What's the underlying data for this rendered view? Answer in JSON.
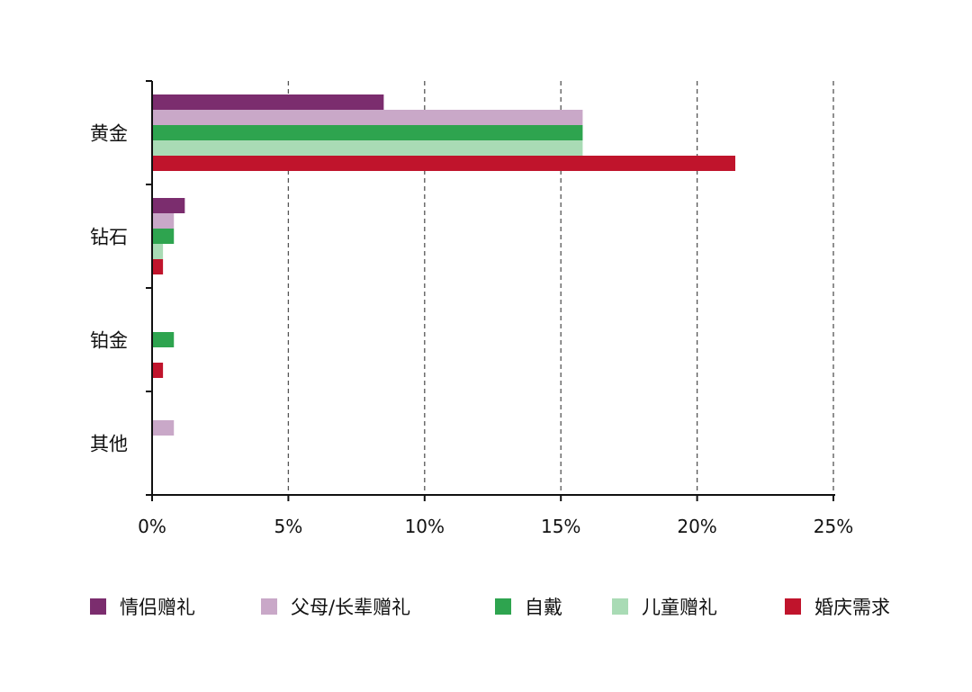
{
  "chart_data": {
    "type": "bar",
    "orientation": "horizontal",
    "categories": [
      "黄金",
      "钻石",
      "铂金",
      "其他"
    ],
    "series": [
      {
        "name": "情侣赠礼",
        "color": "#7b2d6e",
        "values": [
          8.5,
          1.2,
          0,
          0
        ]
      },
      {
        "name": "父母/长辈赠礼",
        "color": "#c9a8c8",
        "values": [
          15.8,
          0.8,
          0,
          0.8
        ]
      },
      {
        "name": "自戴",
        "color": "#2ea44f",
        "values": [
          15.8,
          0.8,
          0.8,
          0
        ]
      },
      {
        "name": "儿童赠礼",
        "color": "#a9dbb5",
        "values": [
          15.8,
          0.4,
          0,
          0
        ]
      },
      {
        "name": "婚庆需求",
        "color": "#c0142c",
        "values": [
          21.4,
          0.4,
          0.4,
          0
        ]
      }
    ],
    "x_ticks": [
      "0%",
      "5%",
      "10%",
      "15%",
      "20%",
      "25%"
    ],
    "xlim": [
      0,
      25
    ],
    "grid": "vertical dashed",
    "legend": "bottom"
  }
}
